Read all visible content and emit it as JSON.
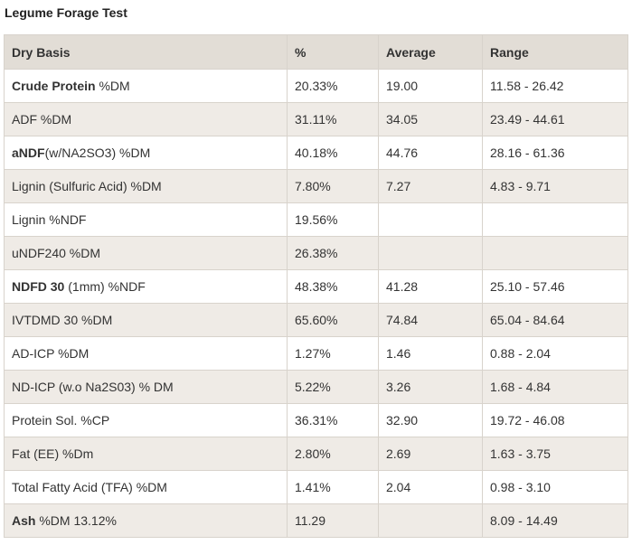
{
  "title": "Legume Forage Test",
  "headers": [
    "Dry Basis",
    "%",
    "Average",
    "Range"
  ],
  "rows": [
    {
      "bold": "Crude Protein",
      "rest": " %DM",
      "pct": "20.33%",
      "avg": "19.00",
      "range": "11.58 - 26.42"
    },
    {
      "bold": "",
      "rest": "ADF %DM",
      "pct": "31.11%",
      "avg": "34.05",
      "range": "23.49 - 44.61"
    },
    {
      "bold": "aNDF",
      "rest": "(w/NA2SO3) %DM",
      "pct": "40.18%",
      "avg": "44.76",
      "range": "28.16 - 61.36"
    },
    {
      "bold": "",
      "rest": "Lignin (Sulfuric Acid) %DM",
      "pct": "7.80%",
      "avg": "7.27",
      "range": "4.83 - 9.71"
    },
    {
      "bold": "",
      "rest": "Lignin %NDF",
      "pct": "19.56%",
      "avg": "",
      "range": ""
    },
    {
      "bold": "",
      "rest": "uNDF240 %DM",
      "pct": "26.38%",
      "avg": "",
      "range": ""
    },
    {
      "bold": "NDFD 30",
      "rest": " (1mm) %NDF",
      "pct": "48.38%",
      "avg": "41.28",
      "range": "25.10 - 57.46"
    },
    {
      "bold": "",
      "rest": "IVTDMD 30 %DM",
      "pct": "65.60%",
      "avg": "74.84",
      "range": "65.04 - 84.64"
    },
    {
      "bold": "",
      "rest": "AD-ICP %DM",
      "pct": "1.27%",
      "avg": "1.46",
      "range": "0.88 - 2.04"
    },
    {
      "bold": "",
      "rest": "ND-ICP (w.o Na2S03) % DM",
      "pct": "5.22%",
      "avg": "3.26",
      "range": "1.68 - 4.84"
    },
    {
      "bold": "",
      "rest": "Protein Sol. %CP",
      "pct": "36.31%",
      "avg": "32.90",
      "range": "19.72 - 46.08"
    },
    {
      "bold": "",
      "rest": "Fat (EE) %Dm",
      "pct": "2.80%",
      "avg": "2.69",
      "range": "1.63 - 3.75"
    },
    {
      "bold": "",
      "rest": "Total Fatty Acid (TFA) %DM",
      "pct": "1.41%",
      "avg": "2.04",
      "range": "0.98 - 3.10"
    },
    {
      "bold": "Ash",
      "rest": " %DM 13.12%",
      "pct": "11.29",
      "avg": "",
      "range": "8.09 - 14.49"
    }
  ]
}
